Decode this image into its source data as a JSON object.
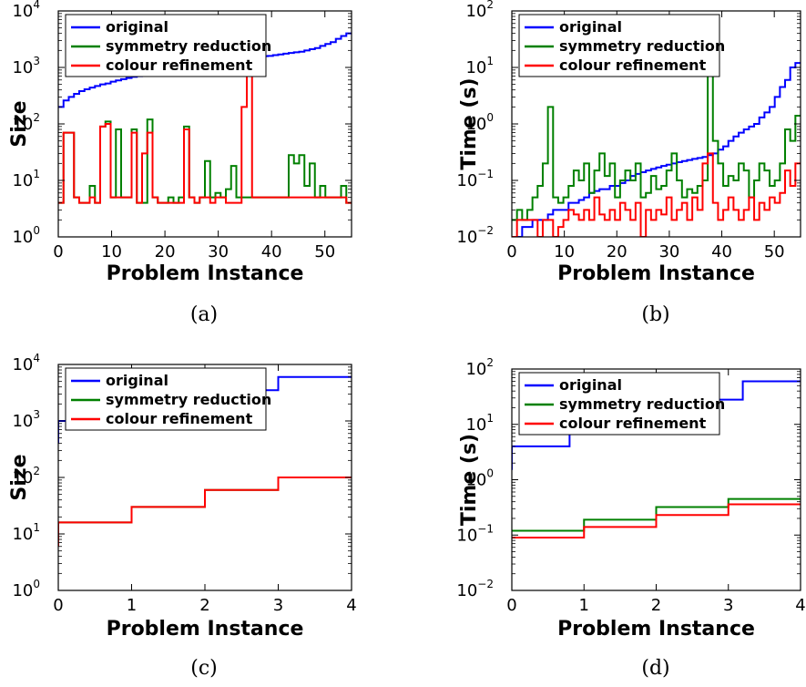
{
  "figure": {
    "subfigures": [
      {
        "caption": "(a)",
        "ylabel": "Size",
        "xlabel": "Problem Instance"
      },
      {
        "caption": "(b)",
        "ylabel": "Time (s)",
        "xlabel": "Problem Instance"
      },
      {
        "caption": "(c)",
        "ylabel": "Size",
        "xlabel": "Problem Instance"
      },
      {
        "caption": "(d)",
        "ylabel": "Time (s)",
        "xlabel": "Problem Instance"
      }
    ]
  },
  "chart_data": [
    {
      "type": "line",
      "title": "",
      "xlabel": "Problem Instance",
      "ylabel": "Size",
      "xlim": [
        0,
        55
      ],
      "ylim": [
        1,
        10000
      ],
      "yscale": "log",
      "xticks": [
        "0",
        "10",
        "20",
        "30",
        "40",
        "50"
      ],
      "yticks": [
        {
          "base": "10",
          "exp": "0"
        },
        {
          "base": "10",
          "exp": "1"
        },
        {
          "base": "10",
          "exp": "2"
        },
        {
          "base": "10",
          "exp": "3"
        },
        {
          "base": "10",
          "exp": "4"
        }
      ],
      "legend_position": "top-left",
      "grid": false,
      "series": [
        {
          "name": "original",
          "color": "#0000ff",
          "step": true,
          "values": [
            200,
            260,
            300,
            340,
            380,
            410,
            440,
            470,
            500,
            520,
            560,
            590,
            620,
            650,
            680,
            700,
            720,
            750,
            780,
            800,
            820,
            850,
            880,
            900,
            920,
            950,
            980,
            1000,
            1050,
            1100,
            1150,
            1200,
            1250,
            1300,
            1350,
            1400,
            1450,
            1500,
            1550,
            1580,
            1600,
            1650,
            1700,
            1750,
            1800,
            1850,
            1900,
            2000,
            2100,
            2200,
            2400,
            2600,
            2800,
            3200,
            3600,
            4000
          ]
        },
        {
          "name": "symmetry reduction",
          "color": "#008000",
          "step": true,
          "values": [
            4,
            70,
            70,
            5,
            4,
            4,
            8,
            4,
            90,
            110,
            5,
            80,
            5,
            5,
            80,
            4,
            4,
            120,
            5,
            4,
            4,
            5,
            4,
            5,
            90,
            5,
            4,
            5,
            22,
            5,
            6,
            5,
            7,
            18,
            5,
            5,
            5,
            5,
            5,
            5,
            5,
            5,
            5,
            5,
            28,
            20,
            28,
            8,
            20,
            5,
            8,
            5,
            5,
            5,
            8,
            4
          ]
        },
        {
          "name": "colour refinement",
          "color": "#ff0000",
          "step": true,
          "values": [
            4,
            70,
            70,
            5,
            4,
            4,
            5,
            4,
            90,
            100,
            5,
            5,
            5,
            5,
            70,
            4,
            30,
            70,
            5,
            4,
            4,
            4,
            4,
            4,
            80,
            5,
            4,
            5,
            5,
            4,
            5,
            5,
            4,
            4,
            4,
            200,
            800,
            5,
            5,
            5,
            5,
            5,
            5,
            5,
            5,
            5,
            5,
            5,
            5,
            5,
            5,
            5,
            5,
            5,
            5,
            4
          ]
        }
      ]
    },
    {
      "type": "line",
      "title": "",
      "xlabel": "Problem Instance",
      "ylabel": "Time (s)",
      "xlim": [
        0,
        55
      ],
      "ylim": [
        0.01,
        100
      ],
      "yscale": "log",
      "xticks": [
        "0",
        "10",
        "20",
        "30",
        "40",
        "50"
      ],
      "xtick_positions": [
        0,
        10,
        20,
        30,
        40,
        50
      ],
      "yticks": [
        {
          "base": "10",
          "exp": "−2"
        },
        {
          "base": "10",
          "exp": "−1"
        },
        {
          "base": "10",
          "exp": "0"
        },
        {
          "base": "10",
          "exp": "1"
        },
        {
          "base": "10",
          "exp": "2"
        }
      ],
      "legend_position": "top-left",
      "grid": false,
      "series": [
        {
          "name": "original",
          "color": "#0000ff",
          "step": true,
          "values": [
            0.005,
            0.01,
            0.015,
            0.015,
            0.02,
            0.02,
            0.02,
            0.025,
            0.03,
            0.03,
            0.03,
            0.04,
            0.04,
            0.045,
            0.05,
            0.06,
            0.065,
            0.07,
            0.07,
            0.08,
            0.08,
            0.09,
            0.1,
            0.12,
            0.13,
            0.14,
            0.15,
            0.16,
            0.17,
            0.18,
            0.19,
            0.2,
            0.21,
            0.22,
            0.23,
            0.24,
            0.25,
            0.26,
            0.28,
            0.3,
            0.35,
            0.4,
            0.5,
            0.6,
            0.7,
            0.8,
            0.9,
            1.0,
            1.3,
            1.6,
            2.0,
            3.0,
            4.5,
            6.0,
            10.0,
            12.0
          ]
        },
        {
          "name": "symmetry reduction",
          "color": "#008000",
          "step": true,
          "values": [
            0.02,
            0.03,
            0.02,
            0.03,
            0.05,
            0.08,
            0.2,
            2.0,
            0.05,
            0.04,
            0.05,
            0.08,
            0.15,
            0.1,
            0.2,
            0.06,
            0.15,
            0.3,
            0.12,
            0.2,
            0.05,
            0.1,
            0.15,
            0.1,
            0.2,
            0.05,
            0.06,
            0.12,
            0.07,
            0.08,
            0.15,
            0.3,
            0.1,
            0.05,
            0.07,
            0.06,
            0.08,
            0.1,
            80,
            0.5,
            0.2,
            0.08,
            0.12,
            0.1,
            0.2,
            0.15,
            0.05,
            0.1,
            0.2,
            0.15,
            0.08,
            0.1,
            0.2,
            0.8,
            0.5,
            1.4
          ]
        },
        {
          "name": "colour refinement",
          "color": "#ff0000",
          "step": true,
          "values": [
            0.01,
            0.02,
            0.02,
            0.02,
            0.02,
            0.01,
            0.02,
            0.02,
            0.01,
            0.015,
            0.02,
            0.03,
            0.025,
            0.02,
            0.03,
            0.02,
            0.05,
            0.025,
            0.02,
            0.03,
            0.02,
            0.04,
            0.03,
            0.02,
            0.04,
            0.01,
            0.03,
            0.02,
            0.03,
            0.025,
            0.05,
            0.02,
            0.03,
            0.04,
            0.02,
            0.05,
            0.03,
            0.2,
            0.3,
            0.04,
            0.02,
            0.03,
            0.05,
            0.03,
            0.02,
            0.03,
            0.05,
            0.02,
            0.04,
            0.03,
            0.05,
            0.04,
            0.06,
            0.15,
            0.08,
            0.2
          ]
        }
      ]
    },
    {
      "type": "line",
      "title": "",
      "xlabel": "Problem Instance",
      "ylabel": "Size",
      "xlim": [
        0,
        4
      ],
      "ylim": [
        1,
        10000
      ],
      "yscale": "log",
      "xticks": [
        "0",
        "1",
        "2",
        "3",
        "4"
      ],
      "xtick_positions": [
        0,
        1,
        2,
        3,
        4
      ],
      "yticks": [
        {
          "base": "10",
          "exp": "0"
        },
        {
          "base": "10",
          "exp": "1"
        },
        {
          "base": "10",
          "exp": "2"
        },
        {
          "base": "10",
          "exp": "3"
        },
        {
          "base": "10",
          "exp": "4"
        }
      ],
      "legend_position": "top-left",
      "grid": false,
      "series": [
        {
          "name": "original",
          "color": "#0000ff",
          "step": true,
          "start": 400,
          "values": [
            1000,
            2000,
            3500,
            6000
          ]
        },
        {
          "name": "symmetry reduction",
          "color": "#008000",
          "step": true,
          "start": 6,
          "values": [
            16,
            30,
            60,
            100
          ]
        },
        {
          "name": "colour refinement",
          "color": "#ff0000",
          "step": true,
          "start": 6,
          "values": [
            16,
            30,
            60,
            100
          ]
        }
      ]
    },
    {
      "type": "line",
      "title": "",
      "xlabel": "Problem Instance",
      "ylabel": "Time (s)",
      "xlim": [
        0,
        4
      ],
      "ylim": [
        0.01,
        100
      ],
      "yscale": "log",
      "xticks": [
        "0",
        "1",
        "2",
        "3",
        "4"
      ],
      "xtick_positions": [
        0,
        1,
        2,
        3,
        4
      ],
      "yticks": [
        {
          "base": "10",
          "exp": "−2"
        },
        {
          "base": "10",
          "exp": "−1"
        },
        {
          "base": "10",
          "exp": "0"
        },
        {
          "base": "10",
          "exp": "1"
        },
        {
          "base": "10",
          "exp": "2"
        }
      ],
      "legend_position": "top-left",
      "grid": false,
      "series": [
        {
          "name": "original",
          "color": "#0000ff",
          "step": true,
          "start": 1.5,
          "values": [
            4,
            10,
            17,
            28,
            60
          ]
        },
        {
          "name": "symmetry reduction",
          "color": "#008000",
          "step": true,
          "values": [
            0.12,
            0.19,
            0.32,
            0.45
          ]
        },
        {
          "name": "colour refinement",
          "color": "#ff0000",
          "step": true,
          "values": [
            0.09,
            0.14,
            0.23,
            0.36
          ]
        }
      ]
    }
  ]
}
